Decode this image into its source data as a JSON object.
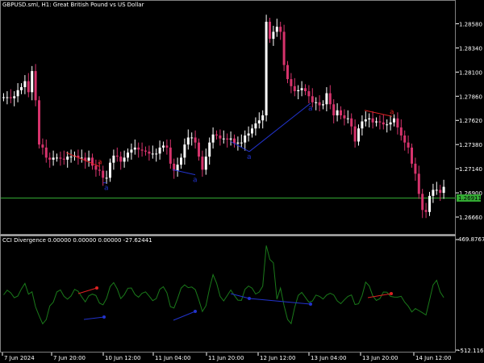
{
  "chart": {
    "symbol_title": "GBPUSD.sml, H1:  Great British Pound vs US Dollar",
    "indicator_title": "CCI Divergence 0.00000 0.00000 0.00000 -27.62441",
    "price_ticks": [
      "1.28580",
      "1.28340",
      "1.28100",
      "1.27860",
      "1.27620",
      "1.27380",
      "1.27140",
      "1.26900",
      "1.26660"
    ],
    "current_price": "1.26911",
    "ind_ticks": [
      "469.87676",
      "-512.11611"
    ],
    "time_ticks": [
      "7 Jun 2024",
      "7 Jun 20:00",
      "10 Jun 12:00",
      "11 Jun 04:00",
      "11 Jun 20:00",
      "12 Jun 12:00",
      "13 Jun 04:00",
      "13 Jun 20:00",
      "14 Jun 12:00"
    ],
    "divergence_marker": "a",
    "colors": {
      "background": "#000000",
      "bull_candle": "#ffffff",
      "bear_candle": "#d6336c",
      "indicator_line": "#1a7a1a",
      "bearish_divergence": "#dd2222",
      "bullish_divergence": "#2233cc",
      "price_level": "#33aa33"
    }
  },
  "chart_data": [
    {
      "type": "candlestick",
      "title": "GBPUSD.sml, H1:  Great British Pound vs US Dollar",
      "ylim": [
        1.265,
        1.288
      ],
      "current_price": 1.26911,
      "close": [
        1.2785,
        1.2785,
        1.2784,
        1.2786,
        1.2792,
        1.2795,
        1.2801,
        1.279,
        1.2811,
        1.2782,
        1.2738,
        1.2735,
        1.2725,
        1.2723,
        1.2725,
        1.2725,
        1.2724,
        1.2723,
        1.2726,
        1.2726,
        1.2727,
        1.2725,
        1.2725,
        1.2722,
        1.2725,
        1.2717,
        1.2713,
        1.2712,
        1.2705,
        1.2705,
        1.272,
        1.2727,
        1.2726,
        1.2721,
        1.2725,
        1.273,
        1.2733,
        1.2735,
        1.2733,
        1.2732,
        1.2731,
        1.2729,
        1.2729,
        1.2729,
        1.2735,
        1.2737,
        1.2735,
        1.2719,
        1.2712,
        1.2718,
        1.2725,
        1.2738,
        1.2745,
        1.2745,
        1.274,
        1.2726,
        1.2713,
        1.2726,
        1.274,
        1.2748,
        1.2747,
        1.2744,
        1.2744,
        1.2743,
        1.2744,
        1.2739,
        1.274,
        1.274,
        1.2747,
        1.2749,
        1.2754,
        1.2759,
        1.2762,
        1.2767,
        1.286,
        1.2843,
        1.285,
        1.2855,
        1.285,
        1.2817,
        1.2803,
        1.2796,
        1.2791,
        1.2792,
        1.2794,
        1.2791,
        1.2786,
        1.278,
        1.278,
        1.2777,
        1.2778,
        1.2789,
        1.2778,
        1.2767,
        1.2772,
        1.2767,
        1.2764,
        1.2764,
        1.2756,
        1.2741,
        1.2754,
        1.2761,
        1.2763,
        1.2764,
        1.276,
        1.2761,
        1.276,
        1.2758,
        1.2758,
        1.276,
        1.2764,
        1.2755,
        1.2747,
        1.274,
        1.2735,
        1.2719,
        1.2709,
        1.2689,
        1.2673,
        1.2671,
        1.2687,
        1.2693,
        1.2693,
        1.269,
        1.2696
      ],
      "series": [
        {
          "name": "Bearish divergence",
          "x": [
            82,
            124
          ],
          "y": [
            1.273,
            1.2716
          ]
        },
        {
          "name": "Bullish divergence",
          "x": [
            128,
            132
          ],
          "y": [
            1.27,
            1.27
          ]
        },
        {
          "name": "Bullish divergence",
          "x": [
            214,
            242
          ],
          "y": [
            1.2713,
            1.2708
          ]
        },
        {
          "name": "Bullish divergence",
          "x": [
            286,
            309
          ],
          "y": [
            1.2741,
            1.2731
          ]
        },
        {
          "name": "Bullish divergence",
          "x": [
            309,
            385
          ],
          "y": [
            1.2731,
            1.2779
          ]
        },
        {
          "name": "Bearish divergence",
          "x": [
            452,
            486
          ],
          "y": [
            1.2772,
            1.2766
          ]
        }
      ]
    },
    {
      "type": "line",
      "title": "CCI Divergence 0.00000 0.00000 0.00000 -27.62441",
      "ylim": [
        -512.11611,
        469.87676
      ]
    }
  ]
}
